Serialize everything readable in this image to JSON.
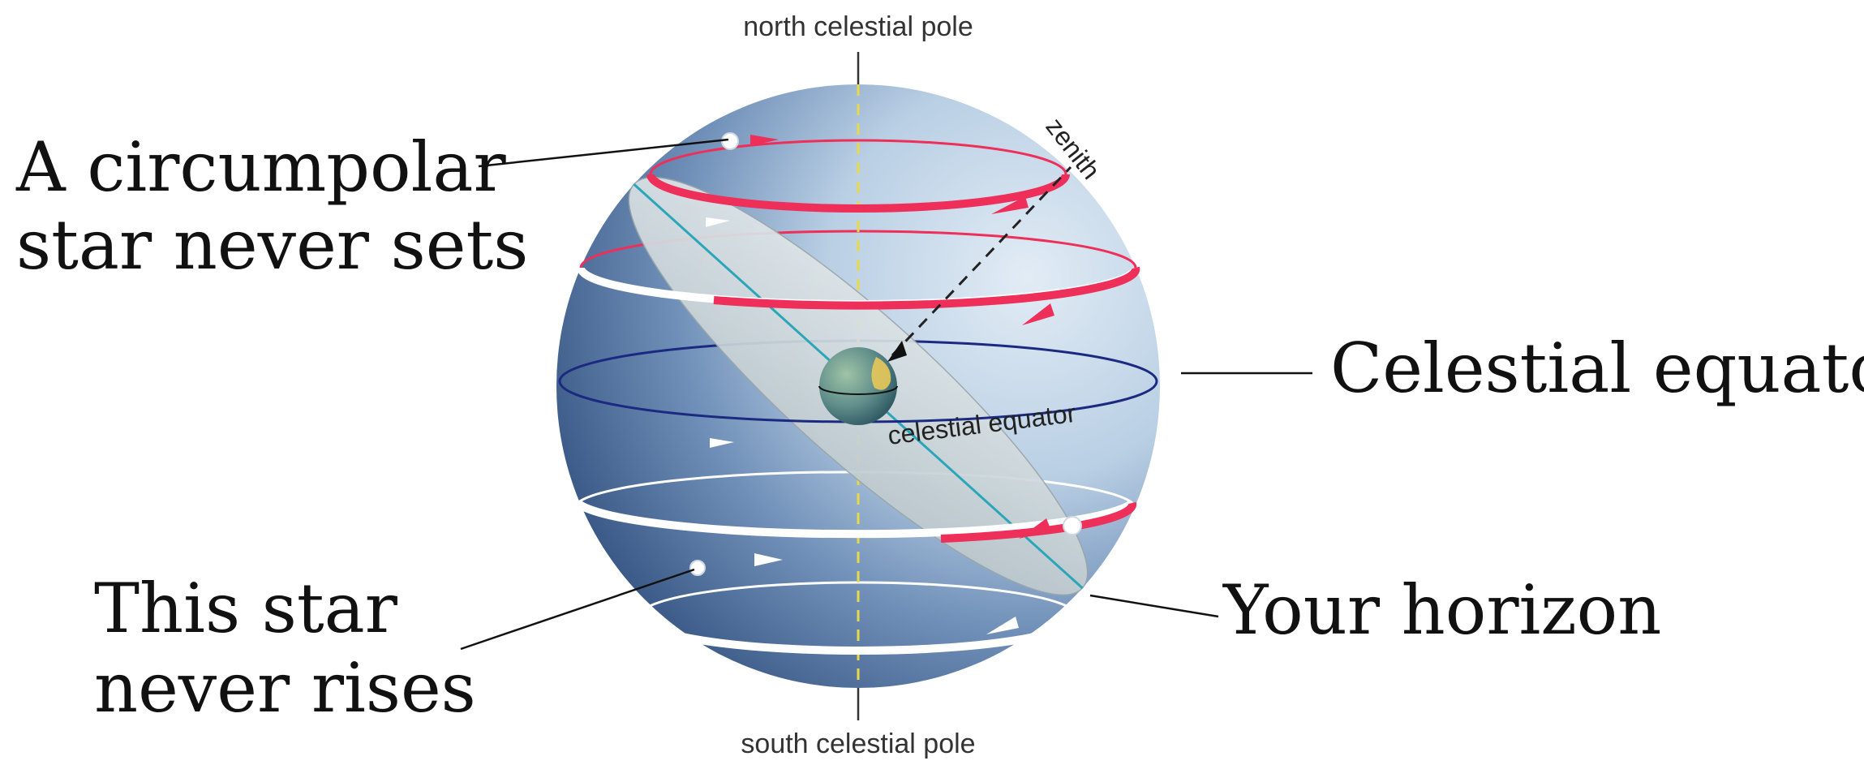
{
  "labels": {
    "north_pole": "north celestial pole",
    "south_pole": "south celestial pole",
    "zenith": "zenith",
    "equator_inner": "celestial equator"
  },
  "callouts": {
    "circumpolar_line1": "A circumpolar",
    "circumpolar_line2": "star never sets",
    "never_rises_line1": "This star",
    "never_rises_line2": "never rises",
    "celestial_equator": "Celestial equator",
    "your_horizon": "Your horizon"
  },
  "colors": {
    "sphere_light": "#cfe0ef",
    "sphere_dark": "#2c4a78",
    "star_path_visible": "#ee2f5a",
    "star_path_hidden": "#ffffff",
    "equator_line": "#1b2a80",
    "axis_dashed": "#f0e060",
    "horizon_plane": "#c9d3d6",
    "horizon_line": "#2aa6b8"
  }
}
